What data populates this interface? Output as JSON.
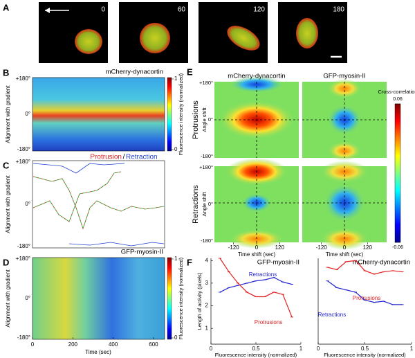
{
  "figure": {
    "panel_labels": [
      "A",
      "B",
      "C",
      "D",
      "E",
      "F"
    ],
    "panel_a": {
      "frame_times": [
        "0",
        "60",
        "120",
        "180"
      ]
    },
    "panel_b": {
      "title": "mCherry-dynacortin",
      "ylabel": "Alignment with gradient",
      "yticks": [
        "+180°",
        "0°",
        "-180°"
      ],
      "colorbar_label": "Fluorescence intensity (normalized)",
      "colorbar_lim": [
        0,
        1
      ],
      "colorbar_ticks": [
        1,
        0
      ]
    },
    "panel_c": {
      "legend": [
        "Protrusion",
        "/",
        "Retraction"
      ],
      "ylabel": "Alignment with gradient",
      "yticks": [
        "+180°",
        "0°",
        "-180°"
      ]
    },
    "panel_d": {
      "title": "GFP-myosin-II",
      "ylabel": "Alignment with gradient",
      "yticks": [
        "+180°",
        "0°",
        "-180°"
      ],
      "colorbar_label": "Fluorescence intensity (normalized)",
      "colorbar_lim": [
        0,
        1
      ],
      "colorbar_ticks": [
        1,
        0
      ],
      "xlabel": "Time (sec)",
      "xlim": [
        0,
        655
      ],
      "xticks": [
        0,
        200,
        400,
        600
      ]
    },
    "panel_e": {
      "column_titles": [
        "mCherry-dynacortin",
        "GFP-myosin-II"
      ],
      "row_titles": [
        "Protrusions",
        "Retractions"
      ],
      "ylabel": "Angle shift",
      "yticks": [
        "+180°",
        "0°",
        "-180°"
      ],
      "xlabel": "Time shift (sec)",
      "xlim": [
        -220,
        220
      ],
      "xticks": [
        -120,
        0,
        120
      ],
      "colorbar_title": "Cross-correlation",
      "colorbar_lim": [
        -0.06,
        0.06
      ],
      "colorbar_ticks": [
        0.06,
        -0.06
      ]
    }
  },
  "chart_data": [
    {
      "type": "line",
      "title": "GFP-myosin-II",
      "xlabel": "Fluorescence intensity (normalized)",
      "ylabel": "Length of activity (pixels)",
      "x": [
        0.1,
        0.2,
        0.3,
        0.4,
        0.5,
        0.6,
        0.7,
        0.8,
        0.9
      ],
      "xlim": [
        0,
        1
      ],
      "xticks": [
        0,
        0.5,
        1
      ],
      "ylim": [
        0.3,
        4.1
      ],
      "yticks": [
        1,
        2,
        3,
        4
      ],
      "series": [
        {
          "name": "Retractions",
          "color": "#2323d0",
          "values": [
            2.6,
            2.8,
            2.9,
            3.0,
            3.1,
            3.15,
            3.25,
            3.05,
            2.95
          ]
        },
        {
          "name": "Protrusions",
          "color": "#e02020",
          "values": [
            4.1,
            3.5,
            3.0,
            2.6,
            2.4,
            2.4,
            2.6,
            2.5,
            1.5
          ]
        }
      ]
    },
    {
      "type": "line",
      "title": "mCherry-dynacortin",
      "xlabel": "Fluorescence intensity (normalized)",
      "x": [
        0.1,
        0.2,
        0.3,
        0.4,
        0.5,
        0.6,
        0.7,
        0.8,
        0.9
      ],
      "xlim": [
        0,
        1
      ],
      "xticks": [
        0,
        0.5,
        1
      ],
      "ylim": [
        0.3,
        4.1
      ],
      "series": [
        {
          "name": "Protrusions",
          "color": "#e02020",
          "values": [
            3.7,
            3.6,
            3.95,
            4.0,
            3.55,
            3.4,
            3.5,
            3.55,
            3.5
          ]
        },
        {
          "name": "Retractions",
          "color": "#2323d0",
          "values": [
            3.1,
            2.8,
            2.7,
            2.6,
            2.25,
            2.15,
            2.2,
            2.05,
            2.05
          ]
        }
      ]
    }
  ]
}
